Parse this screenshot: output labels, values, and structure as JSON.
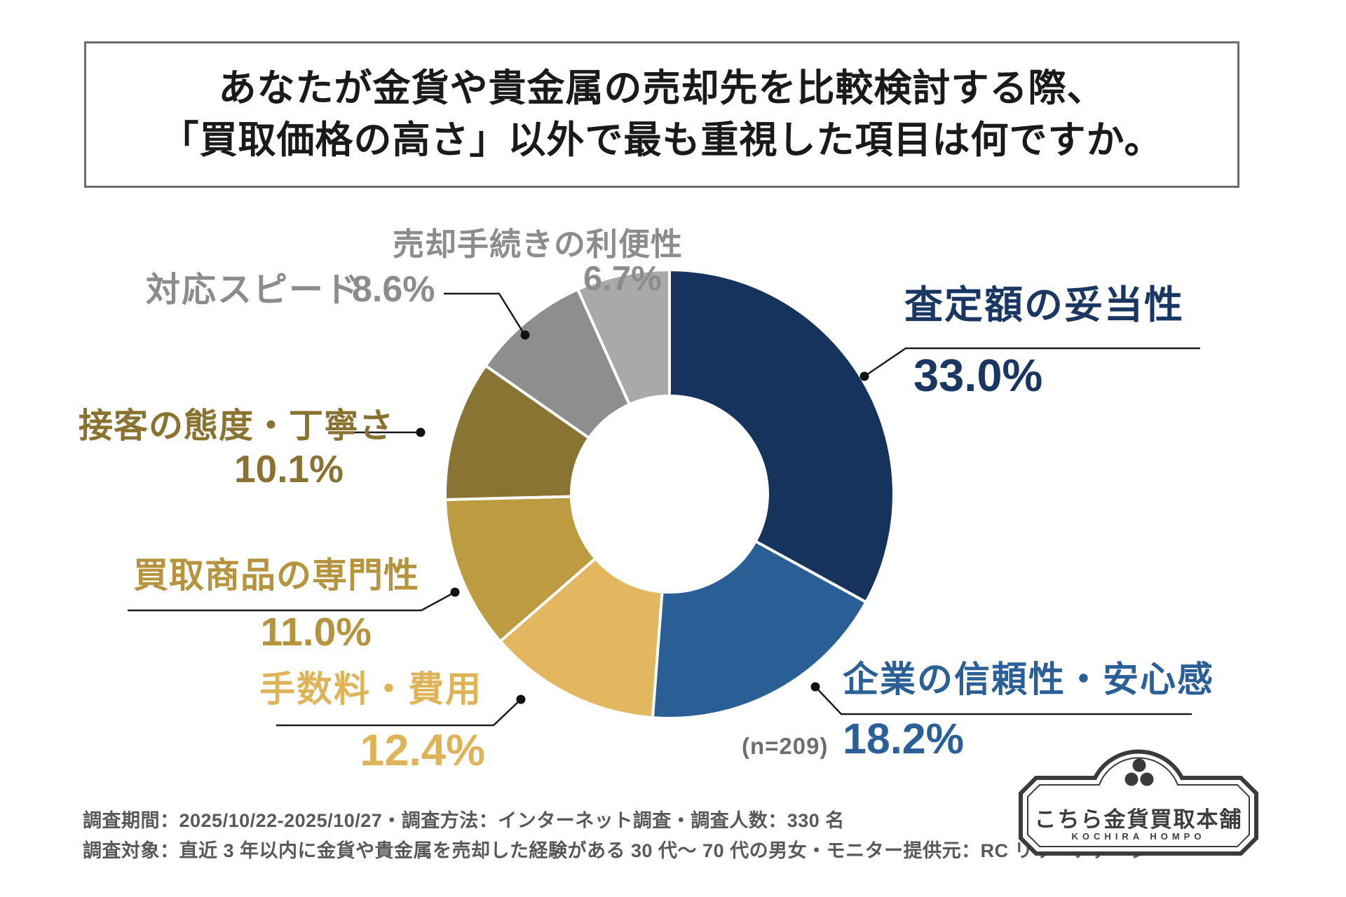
{
  "title": {
    "line1": "あなたが金貨や貴金属の売却先を比較検討する際、",
    "line2": "「買取価格の高さ」以外で最も重視した項目は何ですか。"
  },
  "chart_data": {
    "type": "pie",
    "subtype": "donut",
    "title": "あなたが金貨や貴金属の売却先を比較検討する際、「買取価格の高さ」以外で最も重視した項目は何ですか。",
    "categories": [
      "査定額の妥当性",
      "企業の信頼性・安心感",
      "手数料・費用",
      "買取商品の専門性",
      "接客の態度・丁寧さ",
      "対応スピード",
      "売却手続きの利便性"
    ],
    "values": [
      33.0,
      18.2,
      12.4,
      11.0,
      10.1,
      8.6,
      6.7
    ],
    "unit": "%",
    "n": 209,
    "n_label": "(n=209)",
    "start_angle_deg": 0,
    "direction": "clockwise",
    "legend_position": "callouts",
    "segments": [
      {
        "label": "査定額の妥当性",
        "value": 33.0,
        "pct_label": "33.0%",
        "color": "#16335E",
        "text_color": "#1A3764"
      },
      {
        "label": "企業の信頼性・安心感",
        "value": 18.2,
        "pct_label": "18.2%",
        "color": "#2A5F96",
        "text_color": "#2A6097"
      },
      {
        "label": "手数料・費用",
        "value": 12.4,
        "pct_label": "12.4%",
        "color": "#E2B75F",
        "text_color": "#DFB459"
      },
      {
        "label": "買取商品の専門性",
        "value": 11.0,
        "pct_label": "11.0%",
        "color": "#BD9B40",
        "text_color": "#B6933D"
      },
      {
        "label": "接客の態度・丁寧さ",
        "value": 10.1,
        "pct_label": "10.1%",
        "color": "#8A7433",
        "text_color": "#8A7330"
      },
      {
        "label": "対応スピード",
        "value": 8.6,
        "pct_label": "8.6%",
        "color": "#8E8E8E",
        "text_color": "#8C8C8C"
      },
      {
        "label": "売却手続きの利便性",
        "value": 6.7,
        "pct_label": "6.7%",
        "color": "#A9A9A9",
        "text_color": "#8C8C8C"
      }
    ]
  },
  "footer": {
    "line1": "調査期間：2025/10/22-2025/10/27・調査方法：インターネット調査・調査人数：330 名",
    "line2": "調査対象：直近 3 年以内に金貨や貴金属を売却した経験がある 30 代～ 70 代の男女・モニター提供元：RC リサーチデータ"
  },
  "logo": {
    "name": "こちら金貨買取本舗",
    "romaji": "KOCHIRA HOMPO"
  }
}
